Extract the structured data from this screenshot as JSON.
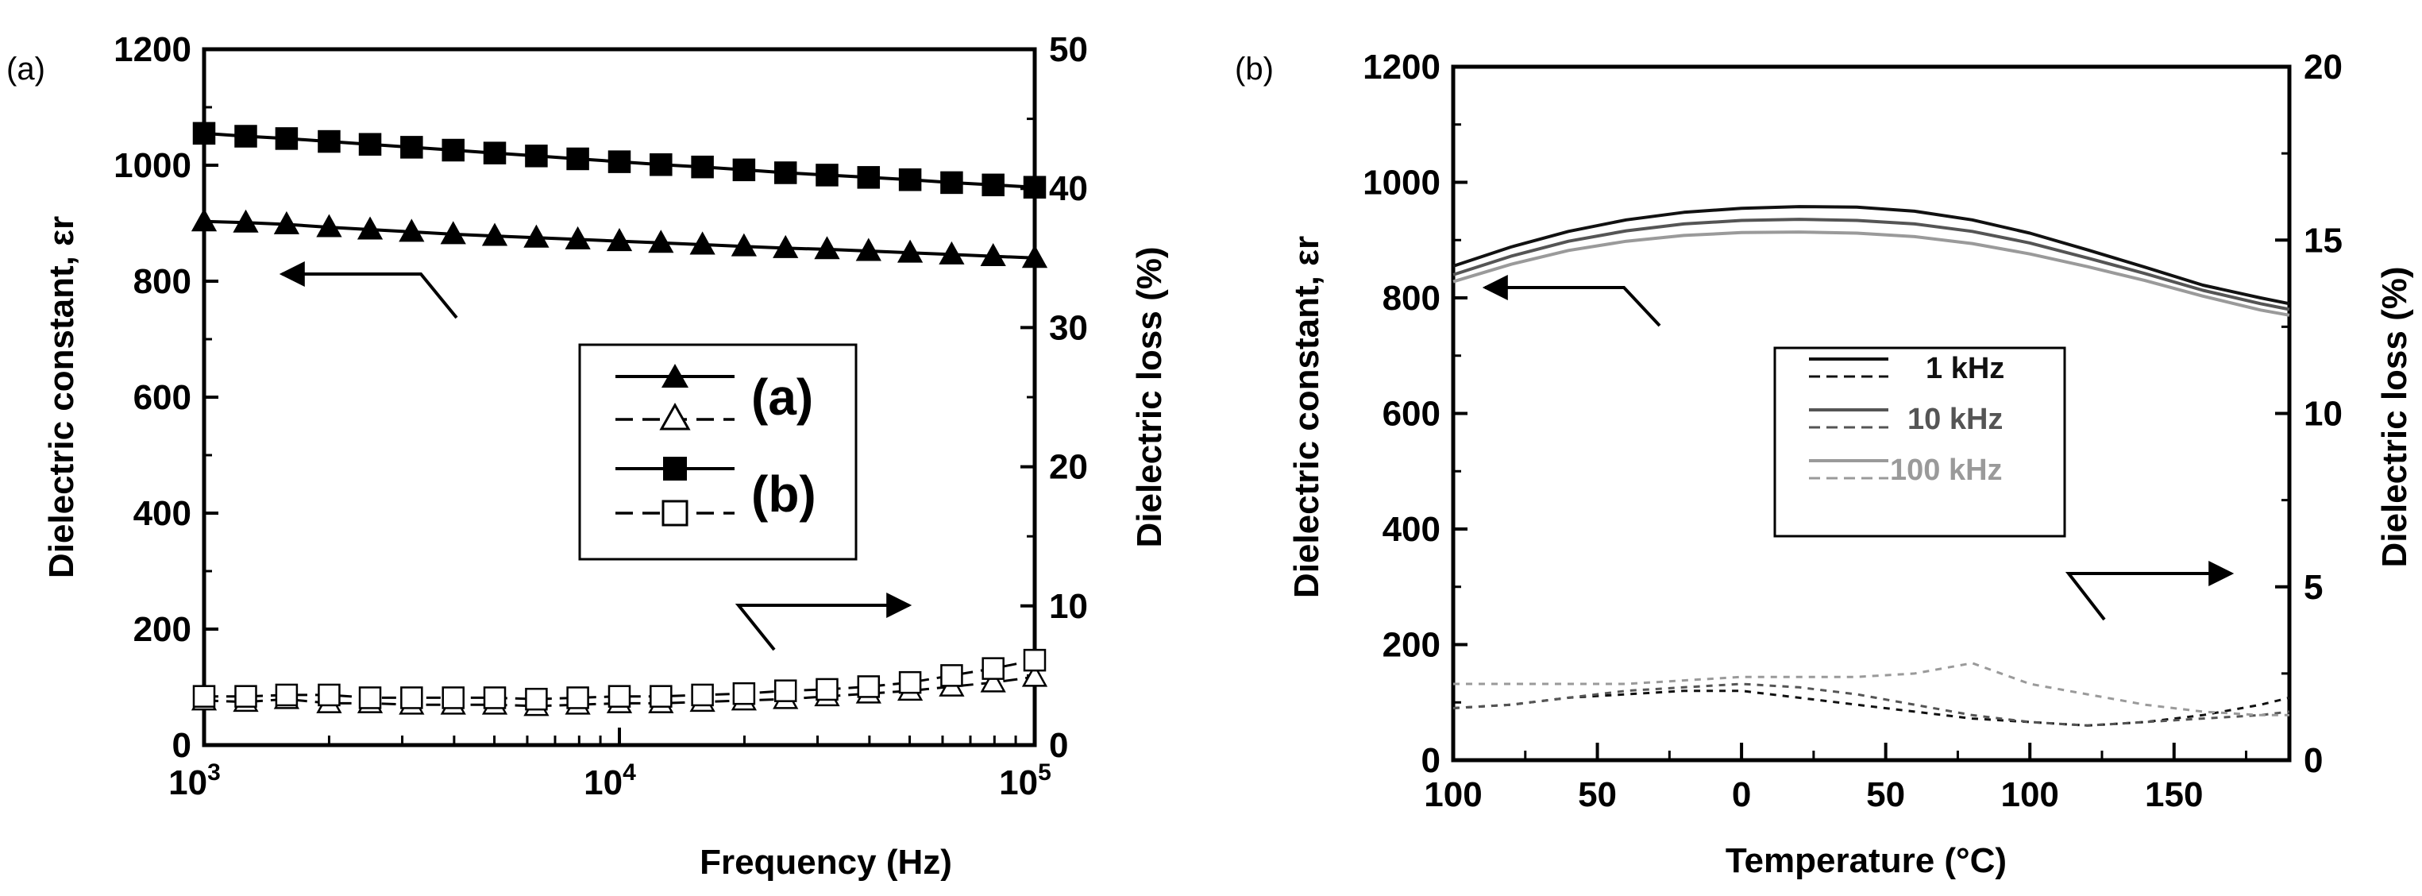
{
  "chart_data": [
    {
      "type": "line",
      "panel_label": "(a)",
      "xlabel": "Frequency (Hz)",
      "ylabel": "Dielectric constant, εr",
      "ylabel_right": "Dielectric loss (%)",
      "x_scale": "log",
      "xlim": [
        1000,
        100000
      ],
      "ylim": [
        0,
        1200
      ],
      "ylim_right": [
        0,
        50
      ],
      "x_ticks": [
        {
          "value": 1000,
          "base": "10",
          "exp": "3"
        },
        {
          "value": 10000,
          "base": "10",
          "exp": "4"
        },
        {
          "value": 100000,
          "base": "10",
          "exp": "5"
        }
      ],
      "y_ticks": [
        "0",
        "200",
        "400",
        "600",
        "800",
        "1000",
        "1200"
      ],
      "y_ticks_right": [
        "0",
        "10",
        "20",
        "30",
        "40",
        "50"
      ],
      "x": [
        1000,
        1260,
        1580,
        2000,
        2510,
        3160,
        3980,
        5010,
        6310,
        7940,
        10000,
        12590,
        15850,
        19950,
        25120,
        31620,
        39810,
        50120,
        63100,
        79430,
        100000
      ],
      "series": [
        {
          "name": "(a)",
          "axis": "left",
          "marker": "filled-triangle",
          "values": [
            903,
            901,
            898,
            893,
            889,
            885,
            881,
            878,
            875,
            872,
            869,
            866,
            863,
            860,
            857,
            855,
            852,
            849,
            846,
            843,
            840
          ]
        },
        {
          "name": "(a)",
          "axis": "right",
          "marker": "open-triangle",
          "values": [
            3.2,
            3.1,
            3.3,
            3.0,
            3.0,
            2.9,
            2.9,
            2.9,
            2.8,
            2.9,
            3.0,
            3.0,
            3.1,
            3.2,
            3.3,
            3.5,
            3.7,
            3.9,
            4.2,
            4.5,
            4.9
          ]
        },
        {
          "name": "(b)",
          "axis": "left",
          "marker": "filled-square",
          "values": [
            1055,
            1050,
            1046,
            1041,
            1036,
            1031,
            1026,
            1021,
            1016,
            1011,
            1006,
            1001,
            997,
            992,
            987,
            983,
            979,
            975,
            970,
            966,
            962
          ]
        },
        {
          "name": "(b)",
          "axis": "right",
          "marker": "open-square",
          "values": [
            3.5,
            3.5,
            3.6,
            3.6,
            3.4,
            3.4,
            3.4,
            3.4,
            3.3,
            3.4,
            3.5,
            3.5,
            3.6,
            3.7,
            3.9,
            4.0,
            4.2,
            4.5,
            5.0,
            5.5,
            6.1
          ]
        }
      ],
      "legend": {
        "position": "center-right",
        "entries": [
          "(a)",
          "(b)"
        ]
      }
    },
    {
      "type": "line",
      "panel_label": "(b)",
      "xlabel": "Temperature (°C)",
      "ylabel": "Dielectric constant, εr",
      "ylabel_right": "Dielectric loss (%)",
      "xlim": [
        -100,
        190
      ],
      "ylim": [
        0,
        1200
      ],
      "ylim_right": [
        0,
        20
      ],
      "x_ticks": [
        {
          "value": -100,
          "label": "100"
        },
        {
          "value": -50,
          "label": "50"
        },
        {
          "value": 0,
          "label": "0"
        },
        {
          "value": 50,
          "label": "50"
        },
        {
          "value": 100,
          "label": "100"
        },
        {
          "value": 150,
          "label": "150"
        }
      ],
      "y_ticks": [
        "0",
        "200",
        "400",
        "600",
        "800",
        "1000",
        "1200"
      ],
      "y_ticks_right": [
        "0",
        "5",
        "10",
        "15",
        "20"
      ],
      "x": [
        -100,
        -80,
        -60,
        -40,
        -20,
        0,
        20,
        40,
        60,
        80,
        100,
        120,
        140,
        160,
        180,
        190
      ],
      "series": [
        {
          "name": "1 kHz",
          "kind": "constant",
          "color": "#111111",
          "values": [
            855,
            888,
            915,
            935,
            948,
            955,
            958,
            957,
            950,
            935,
            912,
            883,
            853,
            822,
            800,
            790
          ]
        },
        {
          "name": "10 kHz",
          "kind": "constant",
          "color": "#555555",
          "values": [
            840,
            872,
            898,
            916,
            928,
            934,
            936,
            934,
            928,
            915,
            895,
            869,
            842,
            813,
            790,
            780
          ]
        },
        {
          "name": "100 kHz",
          "kind": "constant",
          "color": "#9a9a9a",
          "values": [
            828,
            858,
            882,
            898,
            908,
            913,
            914,
            912,
            906,
            894,
            876,
            854,
            830,
            803,
            779,
            770
          ]
        },
        {
          "name": "1 kHz",
          "kind": "loss",
          "color": "#111111",
          "values": [
            1.5,
            1.6,
            1.8,
            1.9,
            2.0,
            2.0,
            1.8,
            1.6,
            1.4,
            1.2,
            1.1,
            1.0,
            1.1,
            1.3,
            1.6,
            1.8
          ]
        },
        {
          "name": "10 kHz",
          "kind": "loss",
          "color": "#555555",
          "values": [
            1.5,
            1.6,
            1.8,
            2.0,
            2.1,
            2.2,
            2.1,
            1.9,
            1.6,
            1.3,
            1.1,
            1.0,
            1.1,
            1.2,
            1.3,
            1.4
          ]
        },
        {
          "name": "100 kHz",
          "kind": "loss",
          "color": "#9a9a9a",
          "values": [
            2.2,
            2.2,
            2.2,
            2.2,
            2.3,
            2.4,
            2.4,
            2.4,
            2.5,
            2.8,
            2.2,
            1.9,
            1.6,
            1.4,
            1.3,
            1.3
          ]
        }
      ],
      "legend": {
        "position": "center",
        "entries": [
          "1 kHz",
          "10 kHz",
          "100 kHz"
        ]
      }
    }
  ]
}
